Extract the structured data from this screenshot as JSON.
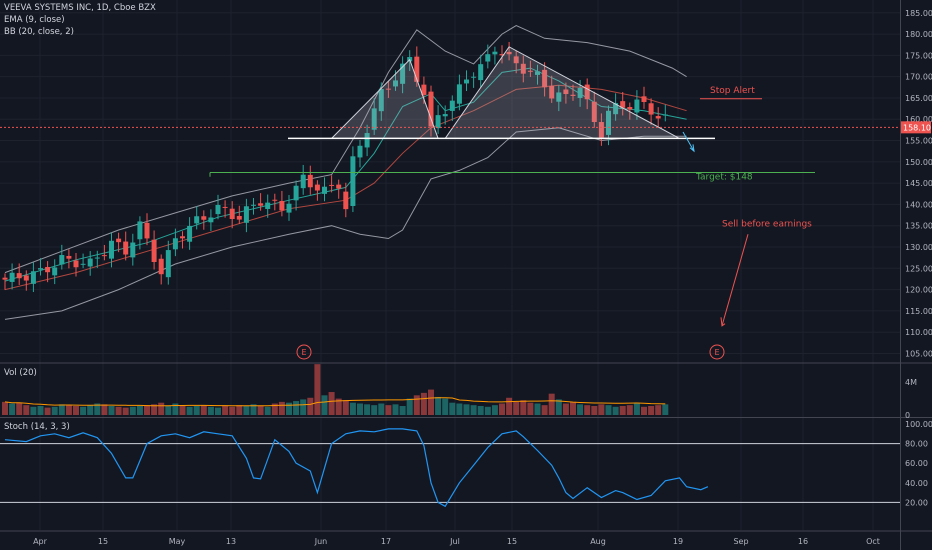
{
  "legend": {
    "title": "VEEVA SYSTEMS INC, 1D, Cboe BZX",
    "ema": "EMA (9, close)",
    "bb": "BB (20, close, 2)",
    "vol": "Vol (20)",
    "stoch": "Stoch (14, 3, 3)"
  },
  "annotations": {
    "stop_alert": "Stop Alert",
    "target": "Target: $148",
    "sell": "Sell before earnings",
    "earnings_marker": "E"
  },
  "colors": {
    "background": "#131722",
    "up": "#26a69a",
    "down": "#ef5350",
    "ema": "#26a69a",
    "bollinger": "#9598a1",
    "stoch": "#2196f3",
    "price_badge": "#ef5350",
    "target_line": "#4caf50",
    "stop_line": "#ef5350"
  },
  "chart_data": [
    {
      "type": "candlestick",
      "title": "VEEVA SYSTEMS INC, 1D, Cboe BZX",
      "x_tick_labels": [
        "Apr",
        "15",
        "May",
        "13",
        "Jun",
        "17",
        "Jul",
        "15",
        "Aug",
        "19",
        "Sep",
        "16",
        "Oct"
      ],
      "y_tick_labels": [
        "105.00",
        "110.00",
        "115.00",
        "120.00",
        "125.00",
        "130.00",
        "135.00",
        "140.00",
        "145.00",
        "150.00",
        "155.00",
        "160.00",
        "165.00",
        "170.00",
        "175.00",
        "180.00",
        "185.00"
      ],
      "ylim": [
        103,
        188
      ],
      "last_price": "158.10",
      "price_path": [
        [
          0,
          122
        ],
        [
          6,
          124
        ],
        [
          9,
          127
        ],
        [
          13,
          126
        ],
        [
          16,
          131
        ],
        [
          18,
          129
        ],
        [
          20,
          135
        ],
        [
          23,
          124
        ],
        [
          25,
          132
        ],
        [
          28,
          136
        ],
        [
          31,
          139
        ],
        [
          34,
          137
        ],
        [
          37,
          141
        ],
        [
          40,
          139
        ],
        [
          43,
          146
        ],
        [
          46,
          143
        ],
        [
          48,
          145
        ],
        [
          49,
          139
        ],
        [
          50,
          150
        ],
        [
          52,
          158
        ],
        [
          54,
          166
        ],
        [
          56,
          170
        ],
        [
          58,
          174
        ],
        [
          60,
          166
        ],
        [
          61,
          157
        ],
        [
          62,
          161
        ],
        [
          64,
          164
        ],
        [
          66,
          170
        ],
        [
          68,
          172
        ],
        [
          70,
          177
        ],
        [
          72,
          174
        ],
        [
          74,
          172
        ],
        [
          76,
          170
        ],
        [
          78,
          166
        ],
        [
          80,
          165
        ],
        [
          82,
          168
        ],
        [
          84,
          159
        ],
        [
          85,
          157
        ],
        [
          86,
          162
        ],
        [
          88,
          163
        ],
        [
          90,
          164
        ],
        [
          92,
          162
        ],
        [
          94,
          160
        ],
        [
          96,
          158
        ]
      ],
      "ema_9": [
        [
          0,
          122
        ],
        [
          10,
          127
        ],
        [
          20,
          131
        ],
        [
          30,
          137
        ],
        [
          40,
          141
        ],
        [
          48,
          144
        ],
        [
          52,
          152
        ],
        [
          56,
          163
        ],
        [
          60,
          166
        ],
        [
          62,
          162
        ],
        [
          66,
          164
        ],
        [
          70,
          171
        ],
        [
          74,
          172
        ],
        [
          78,
          169
        ],
        [
          84,
          163
        ],
        [
          90,
          162
        ],
        [
          96,
          160
        ]
      ],
      "bollinger_upper": [
        [
          0,
          124
        ],
        [
          8,
          129
        ],
        [
          16,
          134
        ],
        [
          24,
          138
        ],
        [
          32,
          142
        ],
        [
          40,
          145
        ],
        [
          46,
          147
        ],
        [
          50,
          158
        ],
        [
          54,
          171
        ],
        [
          58,
          181
        ],
        [
          62,
          176
        ],
        [
          66,
          173
        ],
        [
          70,
          180
        ],
        [
          72,
          182
        ],
        [
          76,
          179
        ],
        [
          82,
          178
        ],
        [
          88,
          176
        ],
        [
          94,
          172
        ],
        [
          96,
          170
        ]
      ],
      "bollinger_middle": [
        [
          0,
          120
        ],
        [
          10,
          124
        ],
        [
          20,
          129
        ],
        [
          30,
          134
        ],
        [
          40,
          139
        ],
        [
          48,
          141
        ],
        [
          52,
          145
        ],
        [
          56,
          152
        ],
        [
          60,
          158
        ],
        [
          66,
          162
        ],
        [
          72,
          167
        ],
        [
          78,
          168
        ],
        [
          84,
          167
        ],
        [
          90,
          165
        ],
        [
          96,
          162
        ]
      ],
      "bollinger_lower": [
        [
          0,
          113
        ],
        [
          8,
          115
        ],
        [
          16,
          120
        ],
        [
          24,
          126
        ],
        [
          32,
          130
        ],
        [
          40,
          133
        ],
        [
          46,
          135
        ],
        [
          50,
          133
        ],
        [
          54,
          132
        ],
        [
          56,
          134
        ],
        [
          60,
          146
        ],
        [
          64,
          148
        ],
        [
          68,
          151
        ],
        [
          72,
          157
        ],
        [
          78,
          158
        ],
        [
          84,
          155
        ],
        [
          90,
          156
        ],
        [
          96,
          156
        ]
      ],
      "volume_axis": [
        "4M",
        "0"
      ],
      "volume_m": [
        1.6,
        1.4,
        1.5,
        1.2,
        1.0,
        1.1,
        0.9,
        1.0,
        1.3,
        1.2,
        1.1,
        1.0,
        1.2,
        1.4,
        1.3,
        1.1,
        1.0,
        0.9,
        1.0,
        1.1,
        1.2,
        1.3,
        1.5,
        1.1,
        1.4,
        1.2,
        1.0,
        1.1,
        1.2,
        1.0,
        0.9,
        1.1,
        1.0,
        1.2,
        1.1,
        1.3,
        1.1,
        1.0,
        1.4,
        1.6,
        1.5,
        1.7,
        1.9,
        2.1,
        6.2,
        2.4,
        2.8,
        2.0,
        1.8,
        1.5,
        1.4,
        1.3,
        1.2,
        1.4,
        1.2,
        1.3,
        1.1,
        2.0,
        2.4,
        2.7,
        3.1,
        2.2,
        2.0,
        1.5,
        1.4,
        1.3,
        1.2,
        1.1,
        1.0,
        1.2,
        1.4,
        2.1,
        1.6,
        1.8,
        1.5,
        1.4,
        1.2,
        2.6,
        1.9,
        1.4,
        1.6,
        1.3,
        1.2,
        1.1,
        1.3,
        1.2,
        1.0,
        1.1,
        1.2,
        1.4,
        1.0,
        1.1,
        1.2,
        1.3
      ],
      "stoch_axis": [
        "100.00",
        "80.00",
        "60.00",
        "40.00",
        "20.00"
      ],
      "stoch_levels": [
        80,
        20
      ],
      "stoch_k": [
        [
          0,
          84
        ],
        [
          3,
          82
        ],
        [
          5,
          88
        ],
        [
          7,
          90
        ],
        [
          9,
          86
        ],
        [
          11,
          91
        ],
        [
          13,
          86
        ],
        [
          15,
          70
        ],
        [
          17,
          45
        ],
        [
          18,
          45
        ],
        [
          20,
          80
        ],
        [
          22,
          88
        ],
        [
          24,
          90
        ],
        [
          26,
          86
        ],
        [
          28,
          92
        ],
        [
          30,
          90
        ],
        [
          32,
          88
        ],
        [
          34,
          65
        ],
        [
          35,
          45
        ],
        [
          36,
          44
        ],
        [
          38,
          84
        ],
        [
          40,
          72
        ],
        [
          41,
          60
        ],
        [
          43,
          52
        ],
        [
          44,
          30
        ],
        [
          46,
          80
        ],
        [
          48,
          90
        ],
        [
          50,
          93
        ],
        [
          52,
          92
        ],
        [
          54,
          95
        ],
        [
          56,
          95
        ],
        [
          58,
          93
        ],
        [
          59,
          78
        ],
        [
          60,
          40
        ],
        [
          61,
          20
        ],
        [
          62,
          16
        ],
        [
          64,
          40
        ],
        [
          66,
          58
        ],
        [
          68,
          76
        ],
        [
          70,
          90
        ],
        [
          72,
          93
        ],
        [
          73,
          87
        ],
        [
          75,
          73
        ],
        [
          77,
          58
        ],
        [
          78,
          45
        ],
        [
          79,
          30
        ],
        [
          80,
          24
        ],
        [
          82,
          35
        ],
        [
          84,
          25
        ],
        [
          86,
          32
        ],
        [
          87,
          30
        ],
        [
          89,
          23
        ],
        [
          91,
          27
        ],
        [
          93,
          42
        ],
        [
          95,
          45
        ],
        [
          96,
          36
        ],
        [
          98,
          33
        ],
        [
          99,
          36
        ]
      ]
    }
  ]
}
